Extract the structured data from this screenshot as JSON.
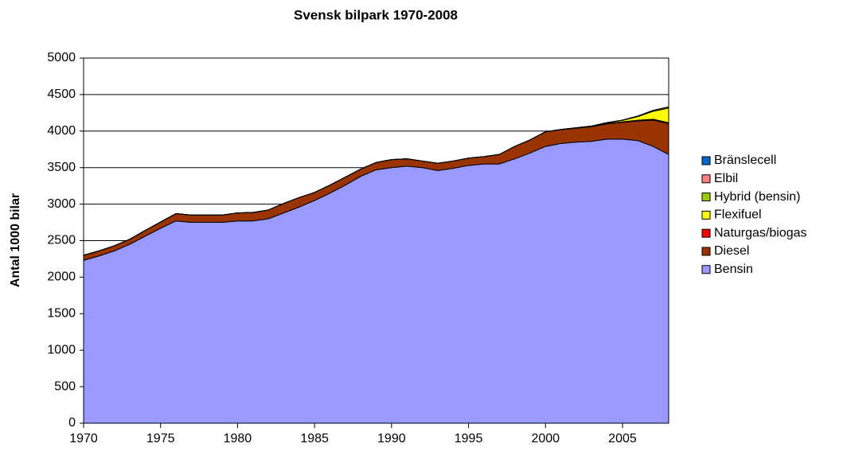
{
  "chart_data": {
    "type": "stacked_area",
    "title": "Svensk bilpark 1970-2008",
    "y_label": "Antal 1000 bilar",
    "x": [
      1970,
      1971,
      1972,
      1973,
      1974,
      1975,
      1976,
      1977,
      1978,
      1979,
      1980,
      1981,
      1982,
      1983,
      1984,
      1985,
      1986,
      1987,
      1988,
      1989,
      1990,
      1991,
      1992,
      1993,
      1994,
      1995,
      1996,
      1997,
      1998,
      1999,
      2000,
      2001,
      2002,
      2003,
      2004,
      2005,
      2006,
      2007,
      2008
    ],
    "series": [
      {
        "name": "Bensin",
        "color": "#9999ff",
        "values": [
          2230,
          2290,
          2360,
          2450,
          2560,
          2670,
          2770,
          2750,
          2750,
          2750,
          2770,
          2770,
          2800,
          2880,
          2960,
          3050,
          3150,
          3260,
          3380,
          3470,
          3500,
          3520,
          3500,
          3460,
          3490,
          3530,
          3550,
          3550,
          3620,
          3700,
          3790,
          3830,
          3850,
          3860,
          3890,
          3890,
          3870,
          3790,
          3680
        ]
      },
      {
        "name": "Diesel",
        "color": "#993300",
        "values": [
          70,
          70,
          70,
          70,
          80,
          85,
          100,
          100,
          100,
          100,
          110,
          115,
          120,
          130,
          130,
          110,
          110,
          110,
          100,
          100,
          110,
          100,
          90,
          100,
          100,
          100,
          100,
          130,
          170,
          180,
          200,
          190,
          190,
          200,
          210,
          230,
          270,
          360,
          420
        ]
      },
      {
        "name": "Naturgas/biogas",
        "color": "#ff0000",
        "values": [
          0,
          0,
          0,
          0,
          0,
          0,
          0,
          0,
          0,
          0,
          0,
          0,
          0,
          0,
          0,
          0,
          0,
          0,
          0,
          0,
          0,
          0,
          0,
          0,
          0,
          0,
          0,
          0,
          0,
          0,
          1,
          2,
          3,
          4,
          5,
          7,
          9,
          12,
          15
        ]
      },
      {
        "name": "Flexifuel",
        "color": "#ffff00",
        "values": [
          0,
          0,
          0,
          0,
          0,
          0,
          0,
          0,
          0,
          0,
          0,
          0,
          0,
          0,
          0,
          0,
          0,
          0,
          0,
          0,
          0,
          0,
          0,
          0,
          0,
          0,
          0,
          0,
          0,
          0,
          0,
          1,
          2,
          5,
          10,
          20,
          50,
          110,
          200
        ]
      },
      {
        "name": "Hybrid (bensin)",
        "color": "#99cc00",
        "values": [
          0,
          0,
          0,
          0,
          0,
          0,
          0,
          0,
          0,
          0,
          0,
          0,
          0,
          0,
          0,
          0,
          0,
          0,
          0,
          0,
          0,
          0,
          0,
          0,
          0,
          0,
          0,
          0,
          0,
          0,
          0,
          0,
          0,
          1,
          2,
          4,
          7,
          12,
          17
        ]
      },
      {
        "name": "Elbil",
        "color": "#ff8080",
        "values": [
          0,
          0,
          0,
          0,
          0,
          0,
          0,
          0,
          0,
          0,
          0,
          0,
          0,
          0,
          0,
          0,
          0,
          0,
          0,
          0,
          0,
          0,
          0,
          0,
          0,
          0,
          0,
          0,
          0,
          0,
          0,
          0,
          0,
          0,
          0,
          0,
          0,
          0,
          0
        ]
      },
      {
        "name": "Bränslecell",
        "color": "#0066cc",
        "values": [
          0,
          0,
          0,
          0,
          0,
          0,
          0,
          0,
          0,
          0,
          0,
          0,
          0,
          0,
          0,
          0,
          0,
          0,
          0,
          0,
          0,
          0,
          0,
          0,
          0,
          0,
          0,
          0,
          0,
          0,
          0,
          0,
          0,
          0,
          0,
          0,
          0,
          0,
          0
        ]
      }
    ],
    "xlim": [
      1970,
      2008
    ],
    "xticks": [
      1970,
      1975,
      1980,
      1985,
      1990,
      1995,
      2000,
      2005
    ],
    "ylim": [
      0,
      5000
    ],
    "yticks": [
      0,
      500,
      1000,
      1500,
      2000,
      2500,
      3000,
      3500,
      4000,
      4500,
      5000
    ],
    "grid": true,
    "legend": "right"
  }
}
